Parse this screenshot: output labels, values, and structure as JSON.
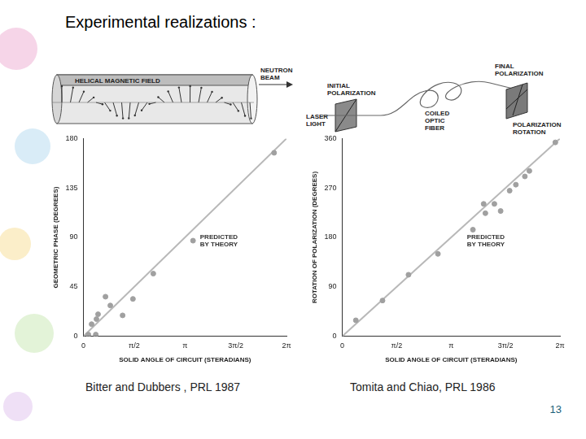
{
  "title": "Experimental realizations :",
  "captions": [
    "Bitter and Dubbers , PRL 1987",
    "Tomita and Chiao, PRL 1986"
  ],
  "page_number": "13",
  "diagrams": [
    {
      "labels": [
        "HELICAL MAGNETIC FIELD",
        "NEUTRON BEAM"
      ]
    },
    {
      "labels": [
        "INITIAL POLARIZATION",
        "LASER LIGHT",
        "COILED OPTIC FIBER",
        "FINAL POLARIZATION",
        "POLARIZATION ROTATION"
      ]
    }
  ],
  "chart_data": [
    {
      "type": "scatter",
      "x_label": "SOLID ANGLE OF CIRCUIT (STERADIANS)",
      "y_label": "GEOMETRIC PHASE (DEGREES)",
      "xlim": [
        0,
        6.2832
      ],
      "xticks": [
        0,
        {
          "value": 1.5708,
          "label": "π/2"
        },
        {
          "value": 3.1416,
          "label": "π"
        },
        {
          "value": 4.7124,
          "label": "3π/2"
        },
        {
          "value": 6.2832,
          "label": "2π"
        }
      ],
      "ylim": [
        0,
        180
      ],
      "yticks": [
        0,
        45,
        90,
        135,
        180
      ],
      "grid": false,
      "series": [
        {
          "type": "scatter",
          "marker": "circle",
          "color": "#a0a0a0",
          "x": [
            0.15,
            0.25,
            0.38,
            0.4,
            0.45,
            0.68,
            0.83,
            1.21,
            1.53,
            2.16,
            3.39,
            5.9
          ],
          "values": [
            1.5,
            11,
            1.5,
            15.6,
            20,
            36,
            28,
            19,
            34,
            57,
            87,
            167
          ]
        },
        {
          "type": "line",
          "line_style": "solid",
          "color": "#b8b8b8",
          "x": [
            0,
            6.2832
          ],
          "values": [
            0,
            180
          ],
          "annotation": "PREDICTED BY THEORY"
        }
      ]
    },
    {
      "type": "scatter",
      "x_label": "SOLID ANGLE OF CIRCUIT (STERADIANS)",
      "y_label": "ROTATION OF POLARIZATION (DEGREES)",
      "xlim": [
        0,
        6.2832
      ],
      "xticks": [
        0,
        {
          "value": 1.5708,
          "label": "π/2"
        },
        {
          "value": 3.1416,
          "label": "π"
        },
        {
          "value": 4.7124,
          "label": "3π/2"
        },
        {
          "value": 6.2832,
          "label": "2π"
        }
      ],
      "ylim": [
        0,
        360
      ],
      "yticks": [
        0,
        90,
        180,
        270,
        360
      ],
      "grid": false,
      "series": [
        {
          "type": "scatter",
          "marker": "circle",
          "color": "#a0a0a0",
          "x": [
            0.39,
            1.16,
            1.91,
            2.76,
            3.77,
            4.13,
            4.08,
            4.39,
            4.57,
            4.83,
            5.01,
            5.27,
            5.4,
            6.15
          ],
          "values": [
            29,
            65,
            112,
            150,
            194,
            224,
            241,
            241,
            228,
            265,
            276,
            291,
            301,
            353
          ]
        },
        {
          "type": "line",
          "line_style": "solid",
          "color": "#b8b8b8",
          "x": [
            0,
            6.2832
          ],
          "values": [
            0,
            360
          ],
          "annotation": "PREDICTED BY THEORY"
        }
      ]
    }
  ]
}
